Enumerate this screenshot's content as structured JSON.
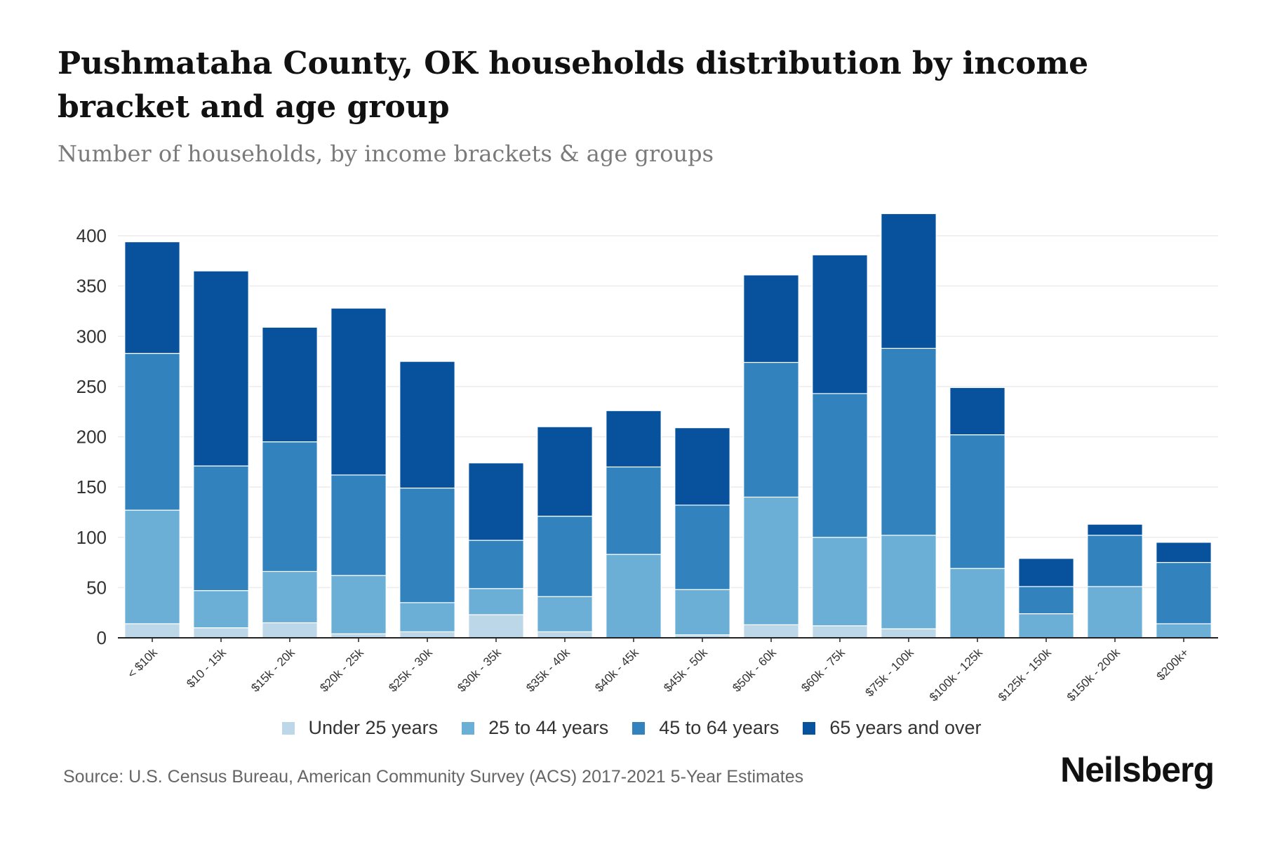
{
  "header": {
    "title": "Pushmataha County, OK households distribution by income bracket and age group",
    "subtitle": "Number of households, by income brackets & age groups"
  },
  "footer": {
    "source": "Source: U.S. Census Bureau, American Community Survey (ACS) 2017-2021 5-Year Estimates",
    "logo": "Neilsberg"
  },
  "chart_data": {
    "type": "bar",
    "stacked": true,
    "title": "Pushmataha County, OK households distribution by income bracket and age group",
    "subtitle": "Number of households, by income brackets & age groups",
    "xlabel": "",
    "ylabel": "",
    "ylim": [
      0,
      420
    ],
    "yticks": [
      0,
      50,
      100,
      150,
      200,
      250,
      300,
      350,
      400
    ],
    "grid": true,
    "legend_position": "bottom",
    "categories": [
      "< $10k",
      "$10 - 15k",
      "$15k - 20k",
      "$20k - 25k",
      "$25k - 30k",
      "$30k - 35k",
      "$35k - 40k",
      "$40k - 45k",
      "$45k - 50k",
      "$50k - 60k",
      "$60k - 75k",
      "$75k - 100k",
      "$100k - 125k",
      "$125k - 150k",
      "$150k - 200k",
      "$200k+"
    ],
    "series": [
      {
        "name": "Under 25 years",
        "color": "#bcd8e8",
        "values": [
          14,
          10,
          15,
          4,
          6,
          23,
          6,
          0,
          3,
          13,
          12,
          9,
          0,
          0,
          0,
          0
        ]
      },
      {
        "name": "25 to 44 years",
        "color": "#6baed6",
        "values": [
          113,
          37,
          51,
          58,
          29,
          26,
          35,
          83,
          45,
          127,
          88,
          93,
          69,
          24,
          51,
          14
        ]
      },
      {
        "name": "45 to 64 years",
        "color": "#3182bd",
        "values": [
          156,
          124,
          129,
          100,
          114,
          48,
          80,
          87,
          84,
          134,
          143,
          186,
          133,
          27,
          51,
          61
        ]
      },
      {
        "name": "65 years and over",
        "color": "#08519c",
        "values": [
          111,
          194,
          114,
          166,
          126,
          77,
          89,
          56,
          77,
          87,
          138,
          134,
          47,
          28,
          11,
          20
        ]
      }
    ]
  }
}
